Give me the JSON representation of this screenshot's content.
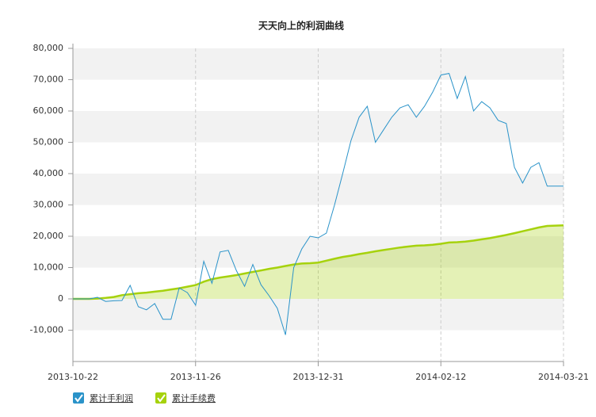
{
  "chart_data": {
    "type": "line",
    "title": "天天向上的利润曲线",
    "categories": [
      "2013-10-22",
      null,
      null,
      null,
      null,
      null,
      null,
      null,
      null,
      null,
      null,
      null,
      null,
      null,
      null,
      "2013-11-26",
      null,
      null,
      null,
      null,
      null,
      null,
      null,
      null,
      null,
      null,
      null,
      null,
      null,
      null,
      "2013-12-31",
      null,
      null,
      null,
      null,
      null,
      null,
      null,
      null,
      null,
      null,
      null,
      null,
      null,
      null,
      "2014-02-12",
      null,
      null,
      null,
      null,
      null,
      null,
      null,
      null,
      null,
      null,
      null,
      null,
      null,
      null,
      "2014-03-21"
    ],
    "series": [
      {
        "name": "累计手利润",
        "color": "#2a93c9",
        "values": [
          0,
          0,
          0,
          500,
          -800,
          -600,
          -500,
          4300,
          -2500,
          -3500,
          -1500,
          -6500,
          -6500,
          3500,
          2000,
          -2000,
          12000,
          5000,
          15000,
          15500,
          9000,
          4000,
          11000,
          4500,
          1000,
          -3000,
          -11500,
          10000,
          16000,
          20000,
          19500,
          21000,
          30000,
          40000,
          50500,
          58000,
          61500,
          50000,
          54000,
          58000,
          61000,
          62000,
          58000,
          61500,
          66000,
          71500,
          72000,
          64000,
          71000,
          60000,
          63000,
          61000,
          57000,
          56000,
          42000,
          37000,
          42000,
          43500,
          36000,
          36000,
          36000
        ]
      },
      {
        "name": "累计手续费",
        "color": "#a6d20d",
        "area": true,
        "values": [
          0,
          0,
          0,
          100,
          300,
          600,
          1200,
          1500,
          1800,
          2000,
          2300,
          2600,
          3000,
          3400,
          3900,
          4400,
          5500,
          6300,
          6800,
          7200,
          7600,
          8100,
          8600,
          9100,
          9600,
          10000,
          10500,
          11000,
          11300,
          11400,
          11600,
          12200,
          12800,
          13400,
          13800,
          14300,
          14700,
          15200,
          15600,
          16000,
          16400,
          16700,
          17000,
          17100,
          17300,
          17600,
          18000,
          18100,
          18300,
          18600,
          19000,
          19400,
          19900,
          20400,
          21000,
          21600,
          22200,
          22800,
          23300,
          23400,
          23500
        ]
      }
    ],
    "ylim": [
      -20000,
      80000
    ],
    "yticks": [
      {
        "value": -10000,
        "label": "-10,000"
      },
      0,
      {
        "value": 10000,
        "label": "10,000"
      },
      {
        "value": 20000,
        "label": "20,000"
      },
      {
        "value": 30000,
        "label": "30,000"
      },
      {
        "value": 40000,
        "label": "40,000"
      },
      {
        "value": 50000,
        "label": "50,000"
      },
      {
        "value": 60000,
        "label": "60,000"
      },
      {
        "value": 70000,
        "label": "70,000"
      },
      {
        "value": 80000,
        "label": "80,000"
      }
    ],
    "grid": true
  }
}
